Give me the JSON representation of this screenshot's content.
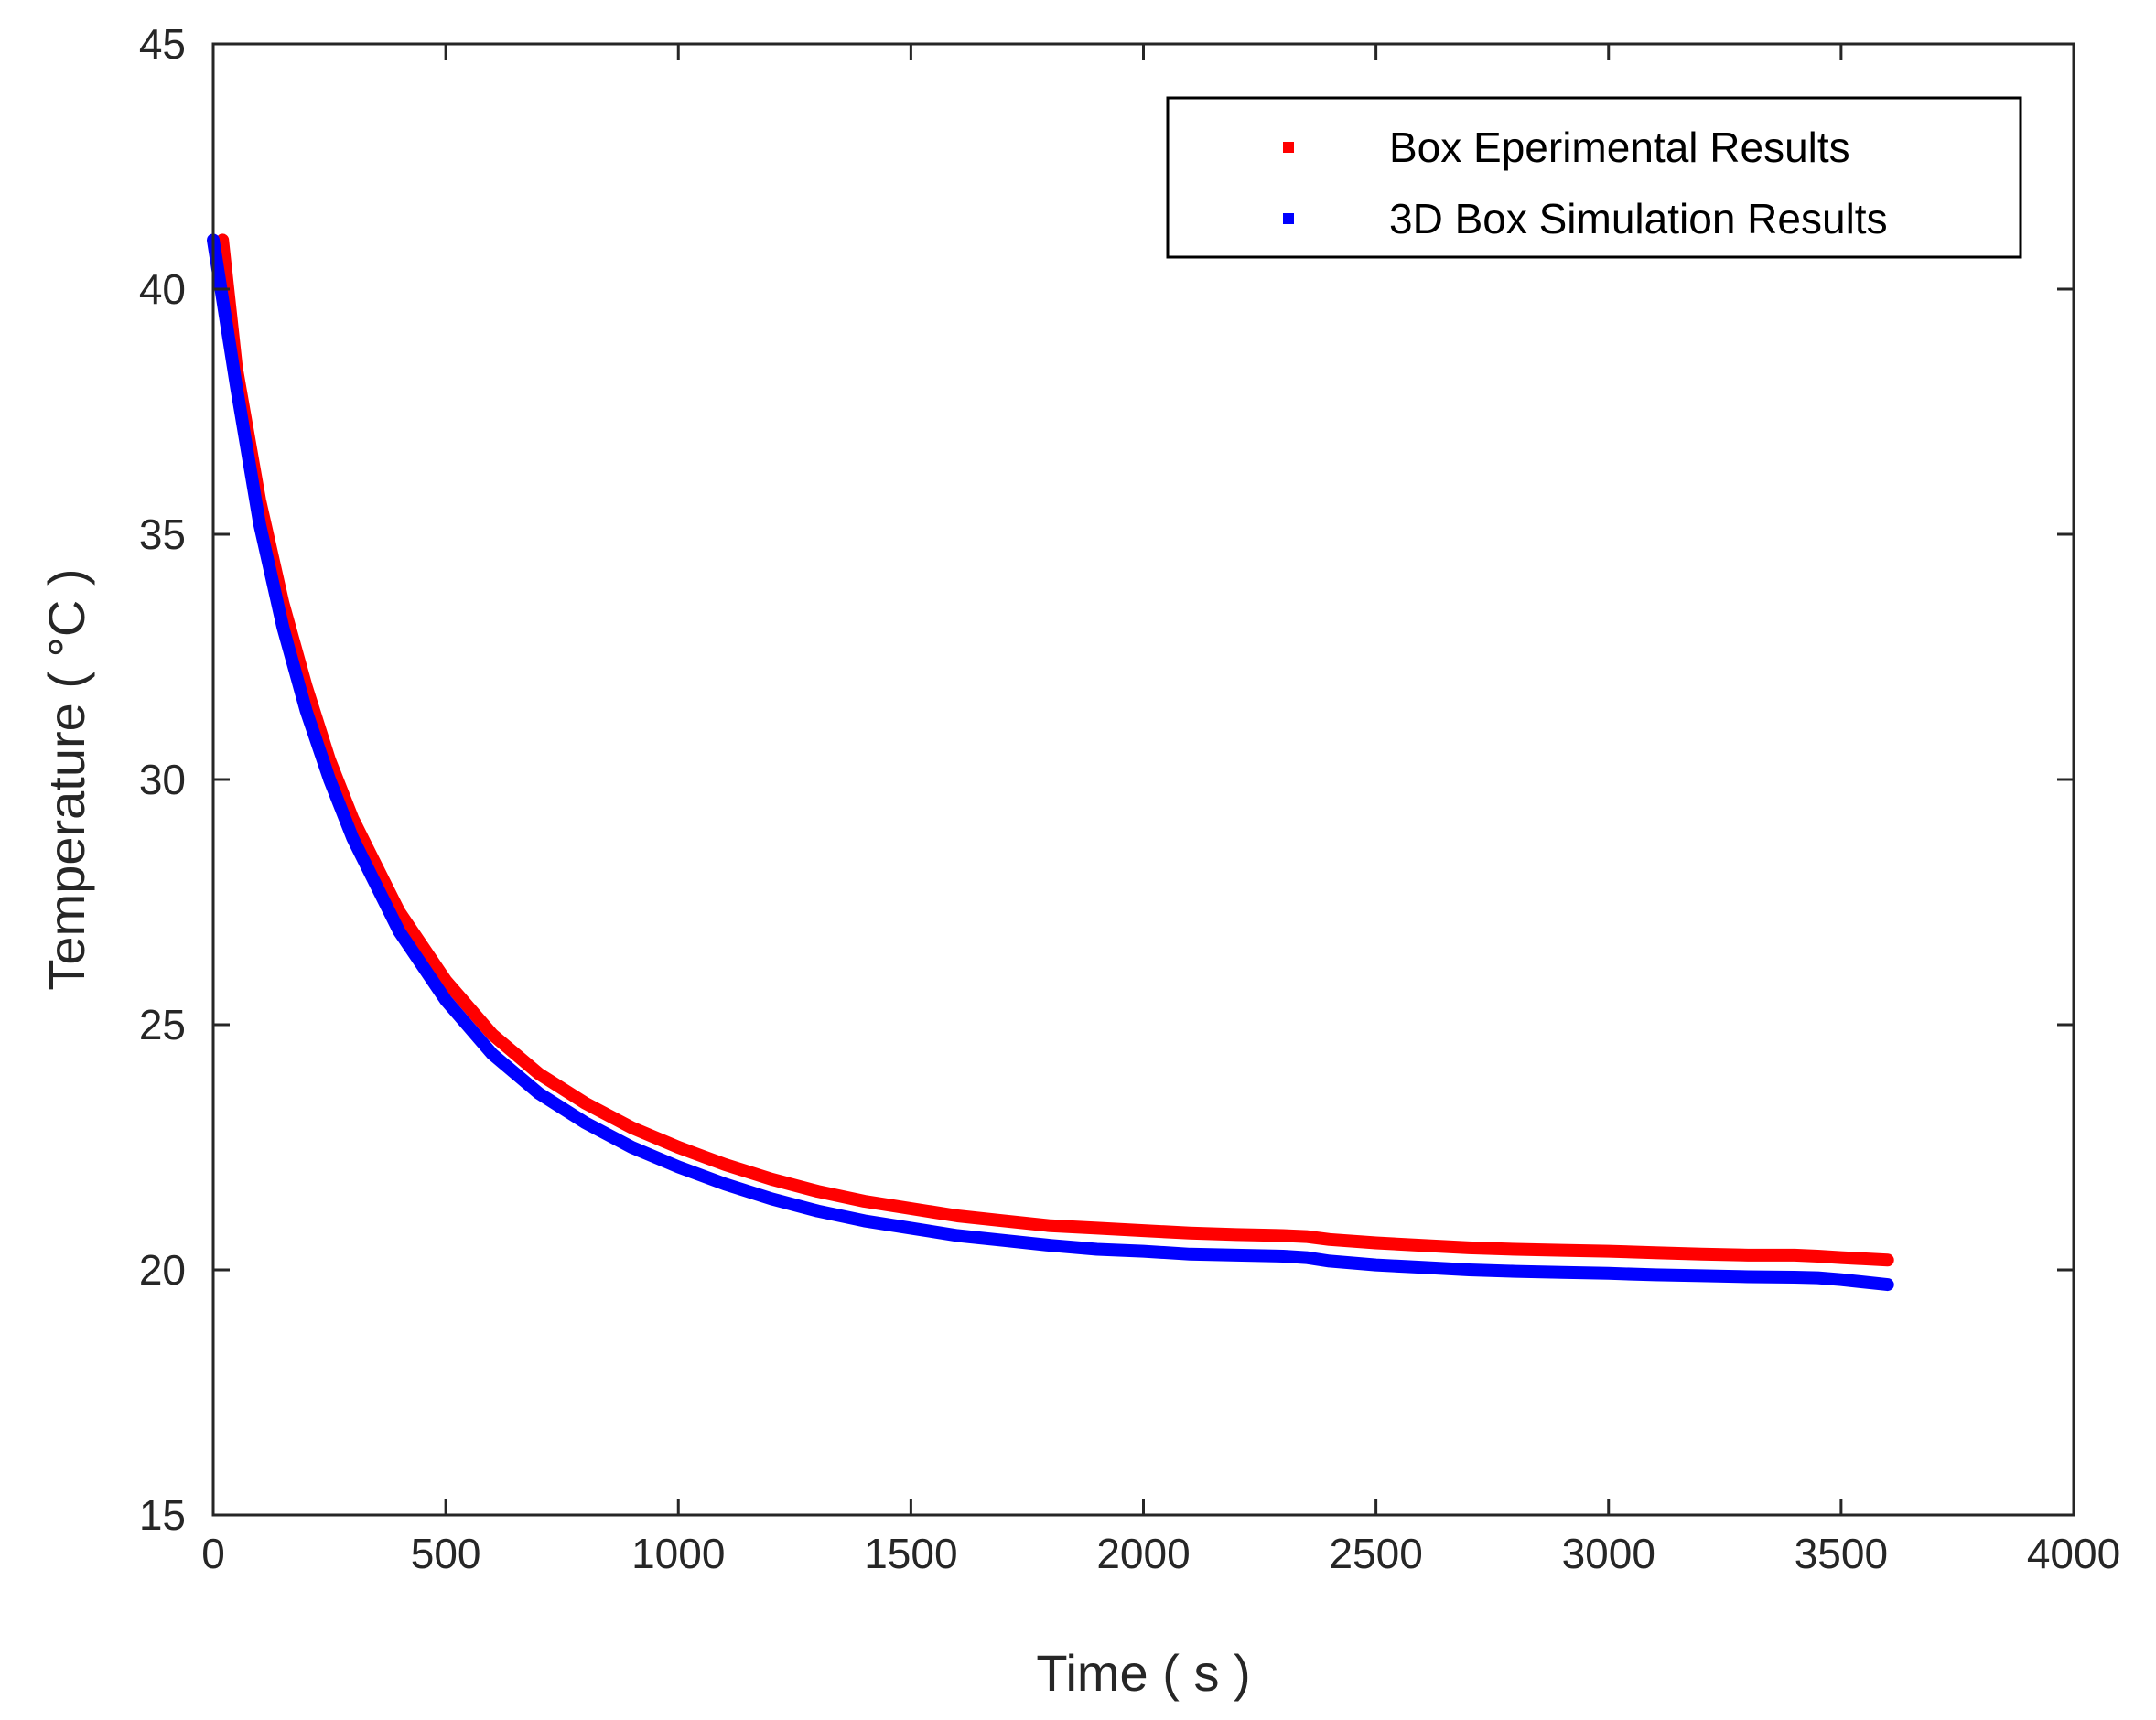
{
  "chart_data": {
    "type": "line",
    "title": "",
    "xlabel": "Time ( s )",
    "ylabel": "Temperature ( °C )",
    "xlim": [
      0,
      4000
    ],
    "ylim": [
      15,
      45
    ],
    "xticks": [
      0,
      500,
      1000,
      1500,
      2000,
      2500,
      3000,
      3500,
      4000
    ],
    "yticks": [
      15,
      20,
      25,
      30,
      35,
      40,
      45
    ],
    "grid": false,
    "legend_position": "top-right",
    "series": [
      {
        "name": "Box Eperimental Results",
        "color": "#ff0000",
        "x": [
          20,
          50,
          100,
          150,
          200,
          250,
          300,
          400,
          500,
          600,
          700,
          800,
          900,
          1000,
          1100,
          1200,
          1300,
          1400,
          1500,
          1600,
          1700,
          1800,
          1900,
          2000,
          2100,
          2200,
          2300,
          2350,
          2400,
          2500,
          2600,
          2700,
          2800,
          2900,
          3000,
          3100,
          3200,
          3300,
          3400,
          3450,
          3500,
          3600
        ],
        "y": [
          41.0,
          38.4,
          35.7,
          33.6,
          31.9,
          30.4,
          29.2,
          27.3,
          25.9,
          24.8,
          24.0,
          23.4,
          22.9,
          22.5,
          22.15,
          21.85,
          21.6,
          21.4,
          21.25,
          21.1,
          21.0,
          20.9,
          20.85,
          20.8,
          20.75,
          20.72,
          20.7,
          20.68,
          20.62,
          20.55,
          20.5,
          20.45,
          20.42,
          20.4,
          20.38,
          20.35,
          20.32,
          20.3,
          20.3,
          20.28,
          20.25,
          20.2
        ]
      },
      {
        "name": "3D Box Simulation Results",
        "color": "#0000ff",
        "x": [
          0,
          50,
          100,
          150,
          200,
          250,
          300,
          400,
          500,
          600,
          700,
          800,
          900,
          1000,
          1100,
          1200,
          1300,
          1400,
          1500,
          1600,
          1700,
          1800,
          1900,
          2000,
          2100,
          2200,
          2300,
          2350,
          2400,
          2500,
          2600,
          2700,
          2800,
          2900,
          3000,
          3100,
          3200,
          3300,
          3400,
          3450,
          3500,
          3600
        ],
        "y": [
          41.0,
          38.0,
          35.2,
          33.1,
          31.4,
          30.0,
          28.8,
          26.9,
          25.5,
          24.4,
          23.6,
          23.0,
          22.5,
          22.1,
          21.75,
          21.45,
          21.2,
          21.0,
          20.85,
          20.7,
          20.6,
          20.5,
          20.42,
          20.38,
          20.32,
          20.3,
          20.28,
          20.25,
          20.18,
          20.1,
          20.05,
          20.0,
          19.97,
          19.95,
          19.93,
          19.9,
          19.88,
          19.86,
          19.85,
          19.84,
          19.8,
          19.7
        ]
      }
    ]
  }
}
